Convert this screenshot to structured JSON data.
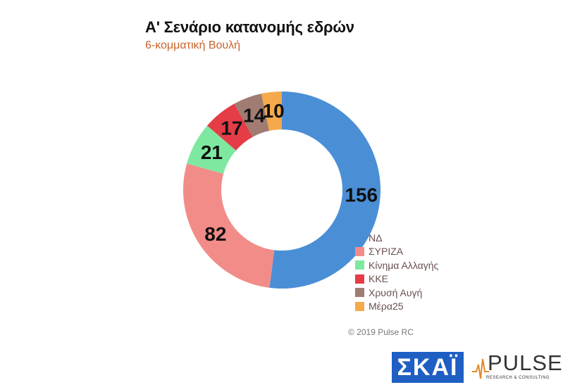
{
  "chart_data": {
    "type": "pie",
    "title": "Α' Σενάριο κατανομής εδρών",
    "subtitle": "6-κομματική Βουλή",
    "categories": [
      "ΝΔ",
      "ΣΥΡΙΖΑ",
      "Κίνημα Αλλαγής",
      "ΚΚΕ",
      "Χρυσή Αυγή",
      "Μέρα25"
    ],
    "values": [
      156,
      82,
      21,
      17,
      14,
      10
    ],
    "colors": [
      "#4a8fd6",
      "#f28c88",
      "#7ee8a0",
      "#e43d47",
      "#a07c72",
      "#f4a94a"
    ],
    "donut": true,
    "legend_position": "bottom-right"
  },
  "copyright": "© 2019 Pulse RC",
  "logos": {
    "skai": "ΣΚΑΪ",
    "pulse": "PULSE",
    "pulse_tagline": "RESEARCH & CONSULTING"
  }
}
